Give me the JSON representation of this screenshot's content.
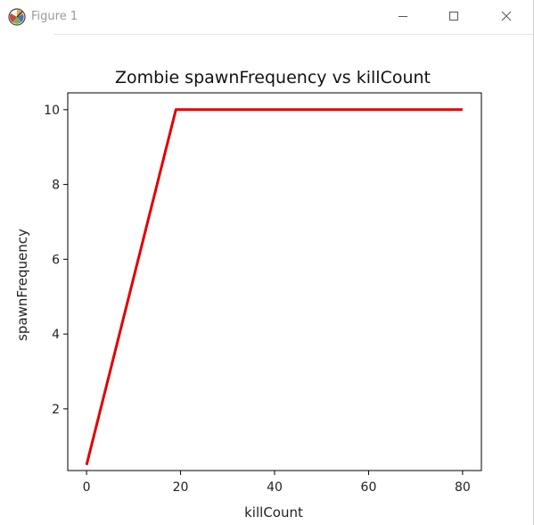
{
  "window": {
    "title": "Figure 1",
    "app_icon": "matplotlib-icon",
    "controls": {
      "minimize_icon": "minimize-icon",
      "maximize_icon": "maximize-icon",
      "close_icon": "close-icon"
    }
  },
  "chart_data": {
    "type": "line",
    "title": "Zombie spawnFrequency vs killCount",
    "xlabel": "killCount",
    "ylabel": "spawnFrequency",
    "xlim": [
      -4,
      84
    ],
    "ylim": [
      0.35,
      10.45
    ],
    "xticks": [
      0,
      20,
      40,
      60,
      80
    ],
    "xtick_labels": [
      "0",
      "20",
      "40",
      "60",
      "80"
    ],
    "yticks": [
      2,
      4,
      6,
      8,
      10
    ],
    "ytick_labels": [
      "2",
      "4",
      "6",
      "8",
      "10"
    ],
    "grid": false,
    "legend": null,
    "series": [
      {
        "color": "#e00000",
        "x": [
          0,
          19,
          80
        ],
        "y": [
          0.5,
          10,
          10
        ]
      }
    ]
  }
}
